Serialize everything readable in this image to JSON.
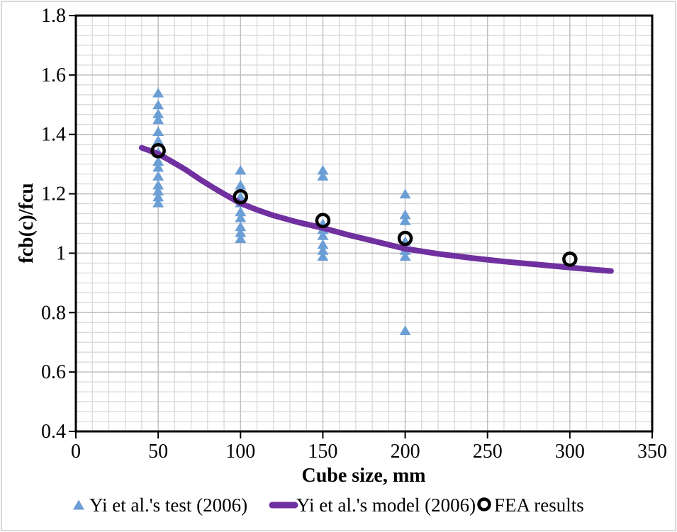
{
  "chart_data": {
    "type": "scatter",
    "title": "",
    "xlabel": "Cube size, mm",
    "ylabel": "fcb(c)/fcu",
    "xlim": [
      0,
      350
    ],
    "ylim": [
      0.4,
      1.8
    ],
    "x_major_step": 50,
    "x_minor_step": 10,
    "y_major_step": 0.2,
    "y_minor_divisions": 6,
    "x_ticks": [
      0,
      50,
      100,
      150,
      200,
      250,
      300,
      350
    ],
    "x_tick_labels": [
      "0",
      "50",
      "100",
      "150",
      "200",
      "250",
      "300",
      "350"
    ],
    "y_ticks": [
      0.4,
      0.6,
      0.8,
      1,
      1.2,
      1.4,
      1.6,
      1.8
    ],
    "y_tick_labels": [
      "0.4",
      "0.6",
      "0.8",
      "1",
      "1.2",
      "1.4",
      "1.6",
      "1.8"
    ],
    "grid": "major+minor",
    "legend_position": "bottom",
    "colors": {
      "test": "#6C9ED6",
      "model": "#7030A0",
      "fea": "#000000",
      "major_grid": "#BFBFBF",
      "minor_grid": "#D9D9D9",
      "axis": "#000000",
      "chart_border": "#D9D9D9",
      "background": "#FFFFFF"
    },
    "series": [
      {
        "name": "Yi et al.'s test (2006)",
        "type": "scatter",
        "marker": "triangle",
        "color": "#6C9ED6",
        "points": [
          [
            50,
            1.54
          ],
          [
            50,
            1.5
          ],
          [
            50,
            1.47
          ],
          [
            50,
            1.45
          ],
          [
            50,
            1.41
          ],
          [
            50,
            1.38
          ],
          [
            50,
            1.34
          ],
          [
            50,
            1.31
          ],
          [
            50,
            1.29
          ],
          [
            50,
            1.26
          ],
          [
            50,
            1.23
          ],
          [
            50,
            1.21
          ],
          [
            50,
            1.19
          ],
          [
            50,
            1.17
          ],
          [
            100,
            1.28
          ],
          [
            100,
            1.23
          ],
          [
            100,
            1.19
          ],
          [
            100,
            1.17
          ],
          [
            100,
            1.14
          ],
          [
            100,
            1.12
          ],
          [
            100,
            1.09
          ],
          [
            100,
            1.07
          ],
          [
            100,
            1.05
          ],
          [
            150,
            1.28
          ],
          [
            150,
            1.26
          ],
          [
            150,
            1.1
          ],
          [
            150,
            1.08
          ],
          [
            150,
            1.06
          ],
          [
            150,
            1.03
          ],
          [
            150,
            1.01
          ],
          [
            150,
            0.99
          ],
          [
            200,
            1.2
          ],
          [
            200,
            1.13
          ],
          [
            200,
            1.11
          ],
          [
            200,
            1.04
          ],
          [
            200,
            1.01
          ],
          [
            200,
            0.99
          ],
          [
            200,
            0.74
          ]
        ]
      },
      {
        "name": "Yi et al.'s model (2006)",
        "type": "line",
        "color": "#7030A0",
        "line_width": 8,
        "points": [
          [
            40,
            1.355
          ],
          [
            45,
            1.345
          ],
          [
            50,
            1.334
          ],
          [
            55,
            1.319
          ],
          [
            60,
            1.303
          ],
          [
            67,
            1.28
          ],
          [
            75,
            1.25
          ],
          [
            83,
            1.222
          ],
          [
            92,
            1.193
          ],
          [
            100,
            1.168
          ],
          [
            110,
            1.146
          ],
          [
            120,
            1.127
          ],
          [
            135,
            1.104
          ],
          [
            150,
            1.085
          ],
          [
            165,
            1.062
          ],
          [
            180,
            1.042
          ],
          [
            200,
            1.015
          ],
          [
            220,
            0.998
          ],
          [
            240,
            0.984
          ],
          [
            260,
            0.972
          ],
          [
            280,
            0.962
          ],
          [
            300,
            0.952
          ],
          [
            312,
            0.946
          ],
          [
            325,
            0.94
          ]
        ]
      },
      {
        "name": "FEA results",
        "type": "scatter",
        "marker": "open-circle",
        "color": "#000000",
        "points": [
          [
            50,
            1.345
          ],
          [
            100,
            1.19
          ],
          [
            150,
            1.11
          ],
          [
            200,
            1.05
          ],
          [
            300,
            0.98
          ]
        ]
      }
    ]
  }
}
